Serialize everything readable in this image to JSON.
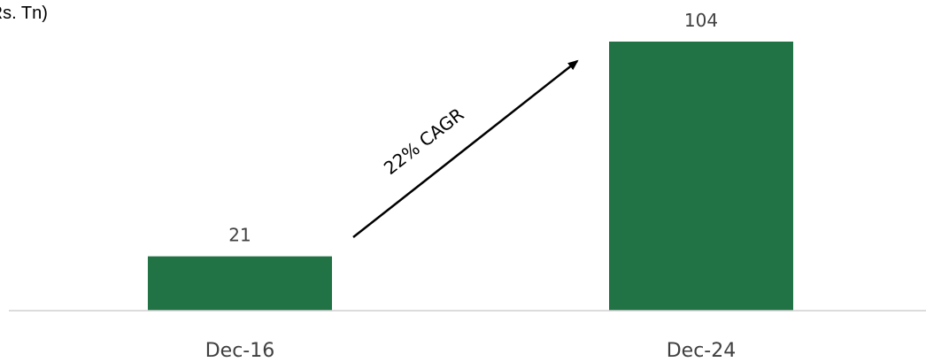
{
  "chart_data": {
    "type": "bar",
    "categories": [
      "Dec-16",
      "Dec-24"
    ],
    "values": [
      21,
      104
    ],
    "data_labels": [
      "21",
      "104"
    ],
    "ylabel": "(Rs. Tn)",
    "ylim": [
      0,
      112
    ],
    "grid": false,
    "bar_color": "#217346",
    "annotation": "22% CAGR"
  }
}
